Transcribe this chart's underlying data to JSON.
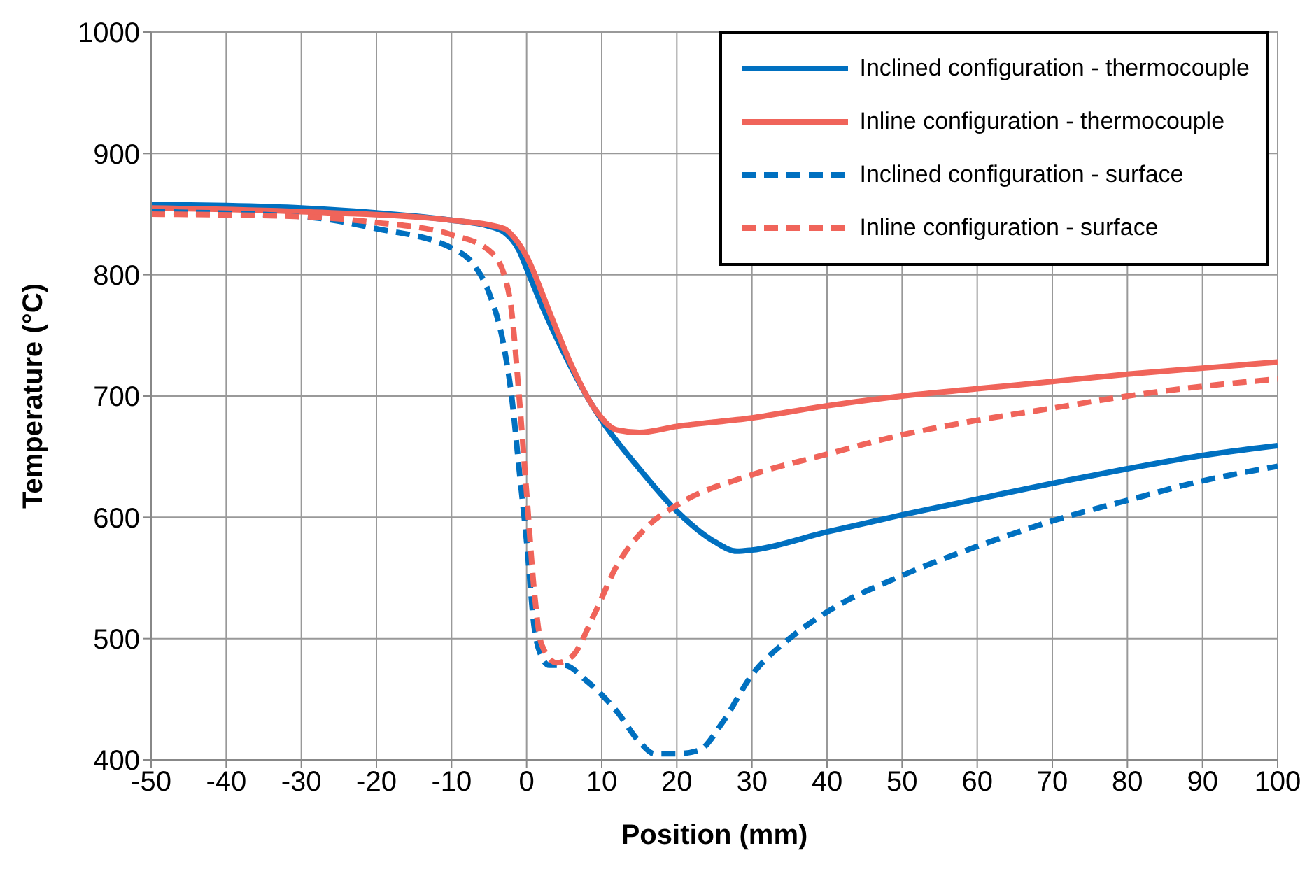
{
  "chart_data": {
    "type": "line",
    "xlabel": "Position (mm)",
    "ylabel": "Temperature (°C)",
    "xlim": [
      -50,
      100
    ],
    "xticks": [
      -50,
      -40,
      -30,
      -20,
      -10,
      0,
      10,
      20,
      30,
      40,
      50,
      60,
      70,
      80,
      90,
      100
    ],
    "ylim": [
      400,
      1000
    ],
    "yticks": [
      400,
      500,
      600,
      700,
      800,
      900,
      1000
    ],
    "grid": true,
    "legend": "top right",
    "marker": "none",
    "series": [
      {
        "name": "Inclined configuration - thermocouple",
        "color": "#0070c0",
        "line_style": "solid",
        "x": [
          -50,
          -40,
          -30,
          -20,
          -10,
          -5,
          -3,
          -1,
          0,
          2,
          5,
          8,
          10,
          15,
          20,
          25,
          28,
          30,
          40,
          50,
          60,
          70,
          80,
          90,
          100
        ],
        "values": [
          858,
          857,
          855,
          851,
          845,
          840,
          835,
          820,
          805,
          775,
          735,
          700,
          680,
          640,
          605,
          580,
          572,
          573,
          588,
          602,
          615,
          628,
          640,
          651,
          659
        ]
      },
      {
        "name": "Inline configuration - thermocouple",
        "color": "#f0645a",
        "line_style": "solid",
        "x": [
          -50,
          -30,
          -10,
          -3,
          -2,
          0,
          3,
          6,
          9,
          12,
          15,
          20,
          30,
          40,
          50,
          60,
          70,
          80,
          90,
          100
        ],
        "values": [
          855,
          852,
          845,
          838,
          833,
          815,
          770,
          725,
          690,
          672,
          670,
          675,
          682,
          692,
          700,
          706,
          712,
          718,
          723,
          728
        ]
      },
      {
        "name": "Inclined configuration - surface",
        "color": "#0070c0",
        "line_style": "dashed",
        "x": [
          -50,
          -30,
          -20,
          -10,
          -7,
          -5,
          -3,
          -2,
          -1,
          0,
          1,
          2,
          3,
          5,
          8,
          12,
          15,
          17,
          20,
          23,
          26,
          30,
          35,
          40,
          50,
          60,
          70,
          80,
          90,
          100
        ],
        "values": [
          852,
          848,
          838,
          822,
          808,
          785,
          740,
          700,
          640,
          580,
          510,
          485,
          478,
          478,
          465,
          440,
          415,
          405,
          405,
          408,
          430,
          470,
          500,
          522,
          552,
          576,
          597,
          614,
          630,
          642
        ]
      },
      {
        "name": "Inline configuration - surface",
        "color": "#f0645a",
        "line_style": "dashed",
        "x": [
          -50,
          -30,
          -20,
          -10,
          -5,
          -3,
          -2,
          -1,
          0,
          1,
          2,
          4,
          6,
          9,
          12,
          16,
          20,
          30,
          40,
          50,
          60,
          70,
          80,
          90,
          100
        ],
        "values": [
          850,
          848,
          843,
          833,
          820,
          800,
          770,
          700,
          620,
          540,
          495,
          480,
          485,
          520,
          560,
          592,
          610,
          635,
          652,
          668,
          680,
          690,
          700,
          708,
          714
        ]
      }
    ]
  }
}
